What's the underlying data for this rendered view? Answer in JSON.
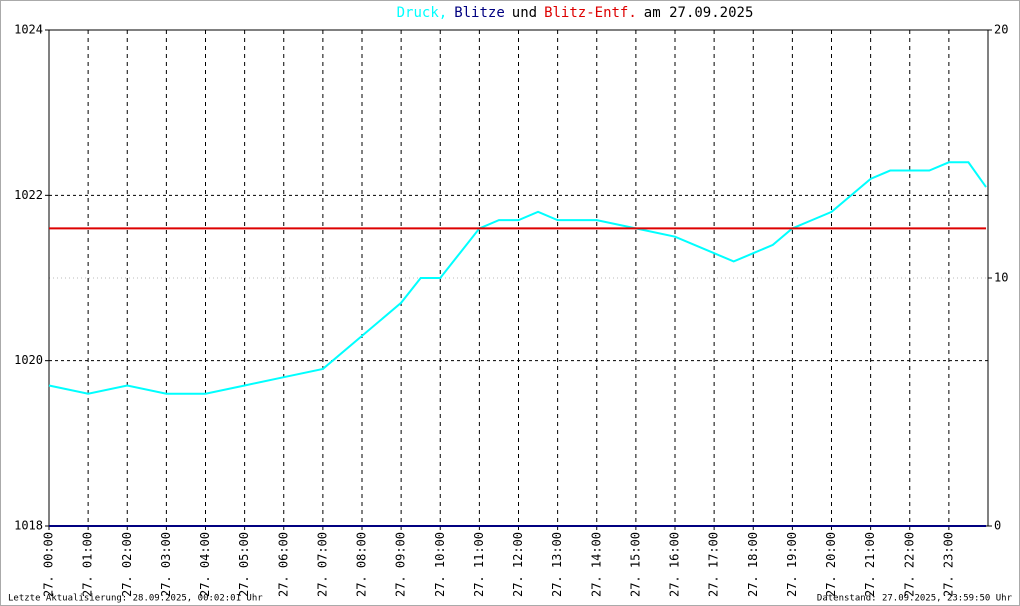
{
  "chart_data": {
    "type": "line",
    "title_words": [
      ",",
      "und",
      "am 27.09.2025"
    ],
    "xlim": [
      0,
      24
    ],
    "xticks": [
      {
        "value": 0,
        "label": "27. 00:00"
      },
      {
        "value": 1,
        "label": "27. 01:00"
      },
      {
        "value": 2,
        "label": "27. 02:00"
      },
      {
        "value": 3,
        "label": "27. 03:00"
      },
      {
        "value": 4,
        "label": "27. 04:00"
      },
      {
        "value": 5,
        "label": "27. 05:00"
      },
      {
        "value": 6,
        "label": "27. 06:00"
      },
      {
        "value": 7,
        "label": "27. 07:00"
      },
      {
        "value": 8,
        "label": "27. 08:00"
      },
      {
        "value": 9,
        "label": "27. 09:00"
      },
      {
        "value": 10,
        "label": "27. 10:00"
      },
      {
        "value": 11,
        "label": "27. 11:00"
      },
      {
        "value": 12,
        "label": "27. 12:00"
      },
      {
        "value": 13,
        "label": "27. 13:00"
      },
      {
        "value": 14,
        "label": "27. 14:00"
      },
      {
        "value": 15,
        "label": "27. 15:00"
      },
      {
        "value": 16,
        "label": "27. 16:00"
      },
      {
        "value": 17,
        "label": "27. 17:00"
      },
      {
        "value": 18,
        "label": "27. 18:00"
      },
      {
        "value": 19,
        "label": "27. 19:00"
      },
      {
        "value": 20,
        "label": "27. 20:00"
      },
      {
        "value": 21,
        "label": "27. 21:00"
      },
      {
        "value": 22,
        "label": "27. 22:00"
      },
      {
        "value": 23,
        "label": "27. 23:00"
      }
    ],
    "ylim": [
      1018,
      1024
    ],
    "yticks": [
      1018,
      1020,
      1022,
      1024
    ],
    "y2lim": [
      0,
      20
    ],
    "y2ticks": [
      0,
      10,
      20
    ],
    "x": [
      0,
      1,
      2,
      3,
      4,
      5,
      6,
      7,
      8,
      8.5,
      9,
      9.5,
      10,
      10.5,
      11,
      11.5,
      12,
      12.5,
      13,
      14,
      15,
      16,
      17,
      17.5,
      18,
      18.5,
      19,
      19.5,
      20,
      20.5,
      21,
      21.5,
      22,
      22.5,
      23,
      23.5,
      23.95
    ],
    "series": [
      {
        "name": "Druck",
        "color": "#00ffff",
        "values": [
          1019.7,
          1019.6,
          1019.7,
          1019.6,
          1019.6,
          1019.7,
          1019.8,
          1019.9,
          1020.3,
          1020.5,
          1020.7,
          1021.0,
          1021.0,
          1021.3,
          1021.6,
          1021.7,
          1021.7,
          1021.8,
          1021.7,
          1021.7,
          1021.6,
          1021.5,
          1021.3,
          1021.2,
          1021.3,
          1021.4,
          1021.6,
          1021.7,
          1021.8,
          1022.0,
          1022.2,
          1022.3,
          1022.3,
          1022.3,
          1022.4,
          1022.4,
          1022.1
        ]
      },
      {
        "name": "Blitze",
        "color": "#000080",
        "axis": "y2",
        "values": [
          0,
          0,
          0,
          0,
          0,
          0,
          0,
          0,
          0,
          0,
          0,
          0,
          0,
          0,
          0,
          0,
          0,
          0,
          0,
          0,
          0,
          0,
          0,
          0,
          0,
          0,
          0,
          0,
          0,
          0,
          0,
          0,
          0,
          0,
          0,
          0,
          0
        ]
      },
      {
        "name": "Blitz-Entf.",
        "color": "#dd0000",
        "axis": "y2",
        "values": [
          12,
          12,
          12,
          12,
          12,
          12,
          12,
          12,
          12,
          12,
          12,
          12,
          12,
          12,
          12,
          12,
          12,
          12,
          12,
          12,
          12,
          12,
          12,
          12,
          12,
          12,
          12,
          12,
          12,
          12,
          12,
          12,
          12,
          12,
          12,
          12,
          12
        ]
      }
    ],
    "grid": true
  },
  "footer": {
    "left": "Letzte Aktualisierung: 28.09.2025, 00:02:01 Uhr",
    "right": "Datenstand: 27.09.2025, 23:59:50 Uhr"
  }
}
